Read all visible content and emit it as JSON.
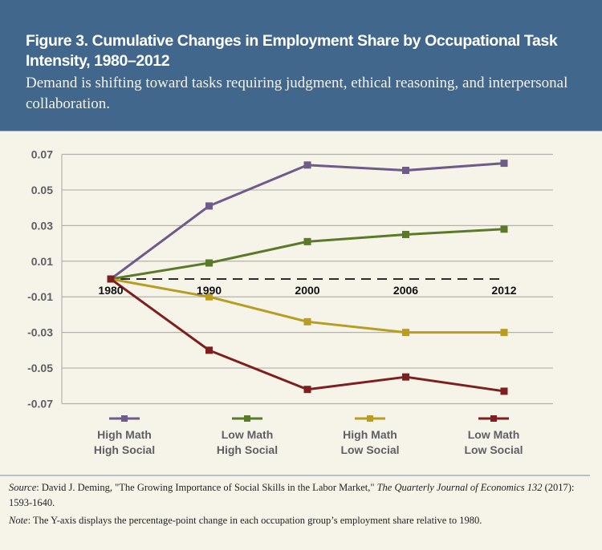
{
  "header": {
    "title": "Figure 3. Cumulative Changes in Employment Share by Occupational Task Intensity, 1980–2012",
    "subtitle": "Demand is shifting toward tasks requiring judgment, ethical reasoning, and interpersonal collaboration."
  },
  "colors": {
    "header_bg": "#42678c",
    "page_bg": "#f6f4e9",
    "high_math_high_social": "#6e5b8a",
    "low_math_high_social": "#5a7a2a",
    "high_math_low_social": "#b89d22",
    "low_math_low_social": "#7d1f1f"
  },
  "chart_data": {
    "type": "line",
    "title": "Cumulative Changes in Employment Share by Occupational Task Intensity, 1980–2012",
    "xlabel": "",
    "ylabel": "",
    "categories": [
      "1980",
      "1990",
      "2000",
      "2006",
      "2012"
    ],
    "ylim": [
      -0.07,
      0.07
    ],
    "yticks": [
      0.07,
      0.05,
      0.03,
      0.01,
      -0.01,
      -0.03,
      -0.05,
      -0.07
    ],
    "ytick_labels": [
      "0.07",
      "0.05",
      "0.03",
      "0.01",
      "-0.01",
      "-0.03",
      "-0.05",
      "-0.07"
    ],
    "grid": true,
    "baseline": {
      "value": 0,
      "style": "dashed"
    },
    "legend_position": "bottom",
    "series": [
      {
        "name": "High Math High Social",
        "label_lines": [
          "High Math",
          "High Social"
        ],
        "color": "#6e5b8a",
        "values": [
          0,
          0.041,
          0.064,
          0.061,
          0.065
        ]
      },
      {
        "name": "Low Math High Social",
        "label_lines": [
          "Low Math",
          "High Social"
        ],
        "color": "#5a7a2a",
        "values": [
          0,
          0.009,
          0.021,
          0.025,
          0.028
        ]
      },
      {
        "name": "High Math Low Social",
        "label_lines": [
          "High Math",
          "Low Social"
        ],
        "color": "#b89d22",
        "values": [
          0,
          -0.01,
          -0.024,
          -0.03,
          -0.03
        ]
      },
      {
        "name": "Low Math Low Social",
        "label_lines": [
          "Low Math",
          "Low Social"
        ],
        "color": "#7d1f1f",
        "values": [
          0,
          -0.04,
          -0.062,
          -0.055,
          -0.063
        ]
      }
    ]
  },
  "footnotes": {
    "source_label": "Source",
    "source_text_1": ": David J. Deming, \"The Growing Importance of Social Skills in the Labor Market,\" ",
    "source_journal": "The Quarterly Journal of Economics 132",
    "source_text_2": " (2017): 1593-1640.",
    "note_label": "Note",
    "note_text": ": The Y-axis displays the percentage-point change in each occupation group’s employment share relative to 1980."
  }
}
